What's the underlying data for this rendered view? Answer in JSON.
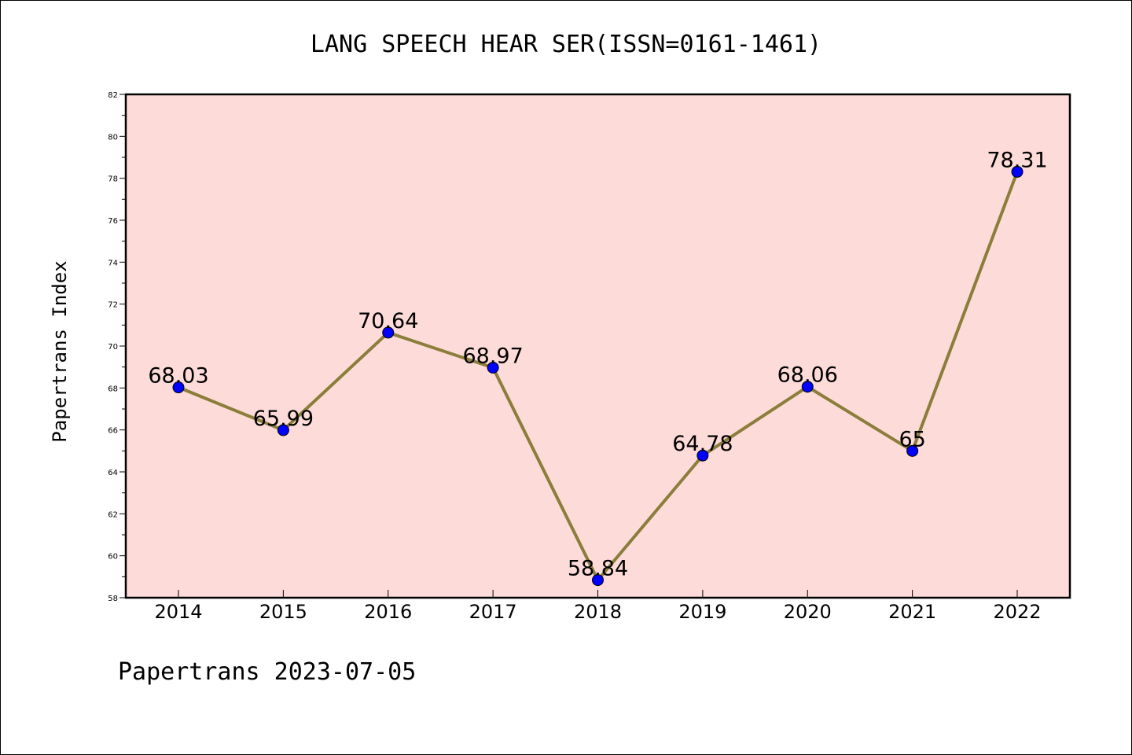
{
  "chart_data": {
    "type": "line",
    "title": "LANG SPEECH HEAR SER(ISSN=0161-1461)",
    "xlabel": "",
    "ylabel": "Papertrans Index",
    "categories": [
      "2014",
      "2015",
      "2016",
      "2017",
      "2018",
      "2019",
      "2020",
      "2021",
      "2022"
    ],
    "values": [
      68.03,
      65.99,
      70.64,
      68.97,
      58.84,
      64.78,
      68.06,
      65,
      78.31
    ],
    "data_labels": [
      "68.03",
      "65.99",
      "70.64",
      "68.97",
      "58.84",
      "64.78",
      "68.06",
      "65",
      "78.31"
    ],
    "ylim": [
      58,
      82
    ],
    "yticks": [
      58,
      60,
      62,
      64,
      66,
      68,
      70,
      72,
      74,
      76,
      78,
      80,
      82
    ],
    "grid": false,
    "footer": "Papertrans 2023-07-05",
    "colors": {
      "plot_background": "#fddbd8",
      "line": "#8b7d3a",
      "marker": "#0000ff"
    }
  }
}
